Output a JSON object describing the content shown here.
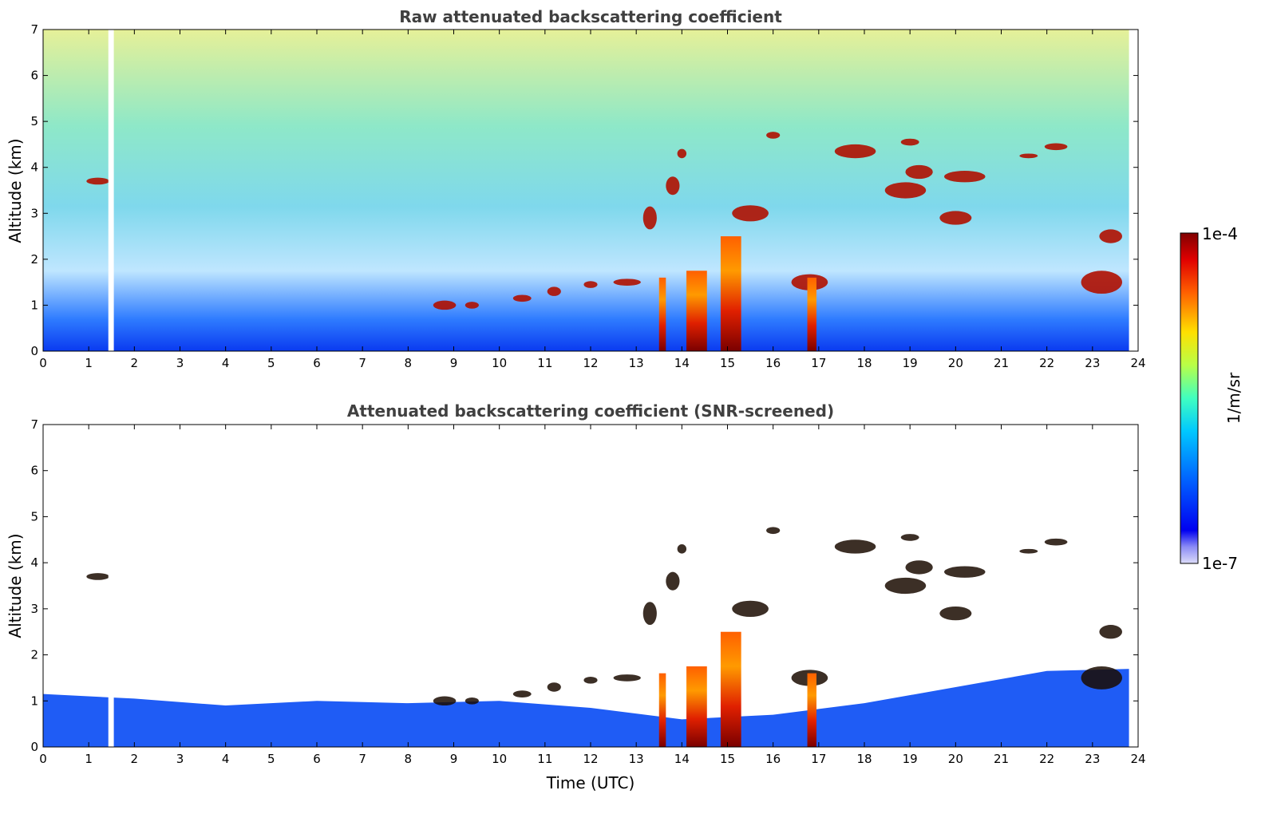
{
  "chart_data": [
    {
      "type": "heatmap",
      "title": "Raw attenuated backscattering coefficient",
      "xlabel": "",
      "ylabel": "Altitude (km)",
      "xlim": [
        0,
        24
      ],
      "ylim": [
        0,
        7
      ],
      "xticks": [
        "0",
        "1",
        "2",
        "3",
        "4",
        "5",
        "6",
        "7",
        "8",
        "9",
        "10",
        "11",
        "12",
        "13",
        "14",
        "15",
        "16",
        "17",
        "18",
        "19",
        "20",
        "21",
        "22",
        "23",
        "24"
      ],
      "yticks": [
        "0",
        "1",
        "2",
        "3",
        "4",
        "5",
        "6",
        "7"
      ],
      "screened": false,
      "clouds": [
        {
          "t": 1.2,
          "z": 3.7,
          "w": 0.5,
          "h": 0.15
        },
        {
          "t": 8.8,
          "z": 1.0,
          "w": 0.5,
          "h": 0.2
        },
        {
          "t": 9.4,
          "z": 1.0,
          "w": 0.3,
          "h": 0.15
        },
        {
          "t": 10.5,
          "z": 1.15,
          "w": 0.4,
          "h": 0.15
        },
        {
          "t": 11.2,
          "z": 1.3,
          "w": 0.3,
          "h": 0.2
        },
        {
          "t": 12.0,
          "z": 1.45,
          "w": 0.3,
          "h": 0.15
        },
        {
          "t": 12.8,
          "z": 1.5,
          "w": 0.6,
          "h": 0.15
        },
        {
          "t": 13.3,
          "z": 2.9,
          "w": 0.3,
          "h": 0.5
        },
        {
          "t": 13.8,
          "z": 3.6,
          "w": 0.3,
          "h": 0.4
        },
        {
          "t": 14.0,
          "z": 4.3,
          "w": 0.2,
          "h": 0.2
        },
        {
          "t": 15.5,
          "z": 3.0,
          "w": 0.8,
          "h": 0.35
        },
        {
          "t": 16.0,
          "z": 4.7,
          "w": 0.3,
          "h": 0.15
        },
        {
          "t": 16.8,
          "z": 1.5,
          "w": 0.8,
          "h": 0.35
        },
        {
          "t": 17.8,
          "z": 4.35,
          "w": 0.9,
          "h": 0.3
        },
        {
          "t": 19.0,
          "z": 4.55,
          "w": 0.4,
          "h": 0.15
        },
        {
          "t": 19.2,
          "z": 3.9,
          "w": 0.6,
          "h": 0.3
        },
        {
          "t": 18.9,
          "z": 3.5,
          "w": 0.9,
          "h": 0.35
        },
        {
          "t": 20.2,
          "z": 3.8,
          "w": 0.9,
          "h": 0.25
        },
        {
          "t": 20.0,
          "z": 2.9,
          "w": 0.7,
          "h": 0.3
        },
        {
          "t": 22.2,
          "z": 4.45,
          "w": 0.5,
          "h": 0.15
        },
        {
          "t": 21.6,
          "z": 4.25,
          "w": 0.4,
          "h": 0.1
        },
        {
          "t": 23.2,
          "z": 1.5,
          "w": 0.9,
          "h": 0.5
        },
        {
          "t": 23.4,
          "z": 2.5,
          "w": 0.5,
          "h": 0.3
        }
      ],
      "precipitation": [
        {
          "t0": 13.5,
          "t1": 13.65,
          "ztop": 1.6
        },
        {
          "t0": 14.1,
          "t1": 14.55,
          "ztop": 1.75
        },
        {
          "t0": 14.85,
          "t1": 15.3,
          "ztop": 2.5
        },
        {
          "t0": 16.75,
          "t1": 16.95,
          "ztop": 1.6
        }
      ],
      "data_gaps": [
        {
          "t0": 1.43,
          "t1": 1.55
        },
        {
          "t0": 23.8,
          "t1": 24.0
        }
      ]
    },
    {
      "type": "heatmap",
      "title": "Attenuated backscattering coefficient (SNR-screened)",
      "xlabel": "Time (UTC)",
      "ylabel": "Altitude (km)",
      "xlim": [
        0,
        24
      ],
      "ylim": [
        0,
        7
      ],
      "xticks": [
        "0",
        "1",
        "2",
        "3",
        "4",
        "5",
        "6",
        "7",
        "8",
        "9",
        "10",
        "11",
        "12",
        "13",
        "14",
        "15",
        "16",
        "17",
        "18",
        "19",
        "20",
        "21",
        "22",
        "23",
        "24"
      ],
      "yticks": [
        "0",
        "1",
        "2",
        "3",
        "4",
        "5",
        "6",
        "7"
      ],
      "screened": true,
      "boundary_layer_top": [
        {
          "t": 0,
          "z": 1.15
        },
        {
          "t": 2,
          "z": 1.05
        },
        {
          "t": 4,
          "z": 0.9
        },
        {
          "t": 6,
          "z": 1.0
        },
        {
          "t": 8,
          "z": 0.95
        },
        {
          "t": 10,
          "z": 1.0
        },
        {
          "t": 12,
          "z": 0.85
        },
        {
          "t": 14,
          "z": 0.6
        },
        {
          "t": 16,
          "z": 0.7
        },
        {
          "t": 18,
          "z": 0.95
        },
        {
          "t": 20,
          "z": 1.3
        },
        {
          "t": 22,
          "z": 1.65
        },
        {
          "t": 24,
          "z": 1.7
        }
      ]
    }
  ],
  "colorbar": {
    "label": "1/m/sr",
    "max_label": "1e-4",
    "min_label": "1e-7",
    "colormap": "jet",
    "scale": "log"
  },
  "colors": {
    "axis": "#000000",
    "title": "#404040"
  }
}
